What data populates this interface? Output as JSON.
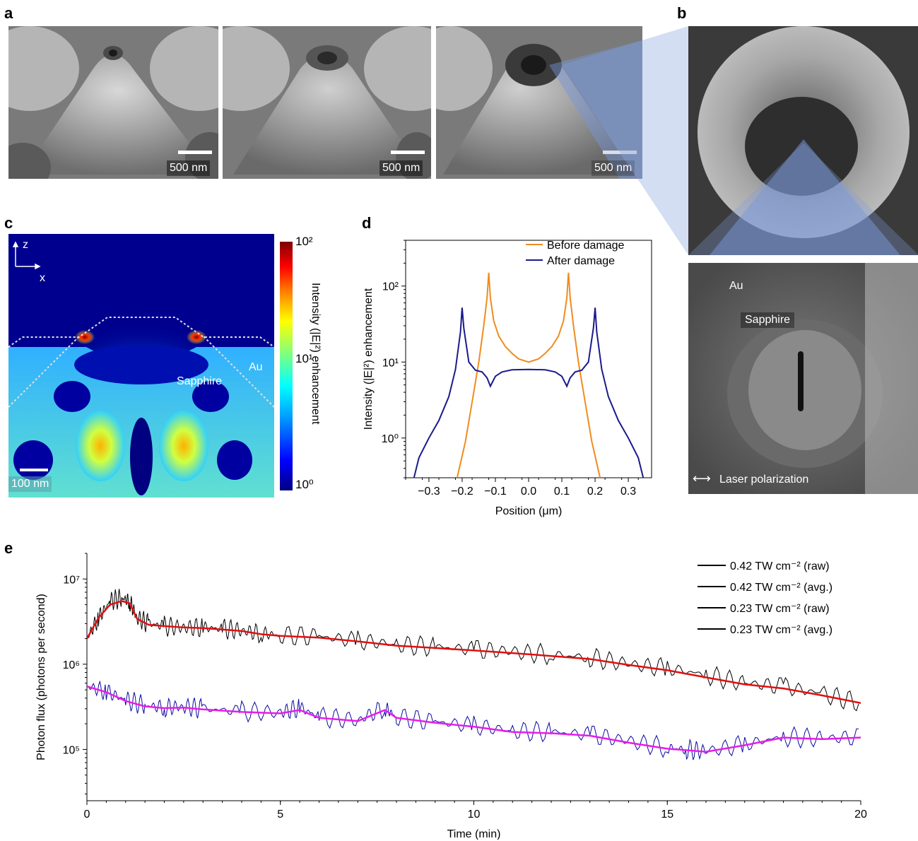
{
  "panel_labels": {
    "a": "a",
    "b": "b",
    "c": "c",
    "d": "d",
    "e": "e"
  },
  "panel_a": {
    "images": [
      {
        "scale_bar": "500 nm"
      },
      {
        "scale_bar": "500 nm"
      },
      {
        "scale_bar": "500 nm"
      }
    ]
  },
  "panel_b": {
    "labels": {
      "au": "Au",
      "sapphire": "Sapphire",
      "polarization": "Laser polarization",
      "polarization_arrow": "⟷"
    }
  },
  "panel_c": {
    "axis_z": "z",
    "axis_x": "x",
    "label_au": "Au",
    "label_sapphire": "Sapphire",
    "scale_bar": "100 nm",
    "colorbar": {
      "label": "Intensity (|E|²) enhancement",
      "ticks": [
        "10²",
        "10¹",
        "10⁰"
      ],
      "colors": [
        "#00007f",
        "#0000ff",
        "#00a0ff",
        "#00ffff",
        "#7fff7f",
        "#ffff00",
        "#ff7f00",
        "#ff0000",
        "#7f0000"
      ]
    }
  },
  "chart_data": [
    {
      "id": "panel-d",
      "type": "line",
      "xlabel": "Position (μm)",
      "ylabel": "Intensity (|E|²) enhancement",
      "xlim": [
        -0.37,
        0.37
      ],
      "ylim": [
        0.3,
        400
      ],
      "yscale": "log",
      "xticks": [
        "−0.3",
        "−0.2",
        "−0.1",
        "0.0",
        "0.1",
        "0.2",
        "0.3"
      ],
      "xtick_values": [
        -0.3,
        -0.2,
        -0.1,
        0.0,
        0.1,
        0.2,
        0.3
      ],
      "yticks": [
        "10⁰",
        "10¹",
        "10²"
      ],
      "ytick_values": [
        1,
        10,
        100
      ],
      "legend_position": "top-right",
      "series": [
        {
          "name": "Before damage",
          "color": "#f08c1e",
          "x": [
            -0.215,
            -0.19,
            -0.17,
            -0.15,
            -0.135,
            -0.125,
            -0.12,
            -0.115,
            -0.105,
            -0.09,
            -0.07,
            -0.05,
            -0.03,
            0.0,
            0.03,
            0.05,
            0.07,
            0.09,
            0.105,
            0.115,
            0.12,
            0.125,
            0.135,
            0.15,
            0.17,
            0.19,
            0.215
          ],
          "y": [
            0.3,
            0.9,
            3,
            10,
            30,
            70,
            150,
            70,
            35,
            22,
            16,
            13,
            11,
            10,
            11,
            13,
            16,
            22,
            35,
            70,
            150,
            70,
            30,
            10,
            3,
            0.9,
            0.3
          ]
        },
        {
          "name": "After damage",
          "color": "#1a1a8c",
          "x": [
            -0.345,
            -0.33,
            -0.3,
            -0.27,
            -0.24,
            -0.22,
            -0.205,
            -0.2,
            -0.195,
            -0.18,
            -0.16,
            -0.14,
            -0.125,
            -0.115,
            -0.1,
            -0.08,
            -0.05,
            0.0,
            0.05,
            0.08,
            0.1,
            0.115,
            0.125,
            0.14,
            0.16,
            0.18,
            0.195,
            0.2,
            0.205,
            0.22,
            0.24,
            0.27,
            0.3,
            0.33,
            0.345
          ],
          "y": [
            0.3,
            0.55,
            1.0,
            1.7,
            3.5,
            8,
            25,
            52,
            28,
            10,
            7.8,
            7.4,
            6.2,
            4.8,
            6.5,
            7.4,
            7.9,
            8.0,
            7.9,
            7.4,
            6.5,
            4.8,
            6.2,
            7.4,
            7.8,
            10,
            28,
            52,
            25,
            8,
            3.5,
            1.7,
            1.0,
            0.55,
            0.3
          ]
        }
      ]
    },
    {
      "id": "panel-e",
      "type": "line",
      "xlabel": "Time (min)",
      "ylabel": "Photon flux (photons per second)",
      "xlim": [
        0,
        20
      ],
      "ylim": [
        25000,
        20000000
      ],
      "yscale": "log",
      "xticks": [
        "0",
        "5",
        "10",
        "15",
        "20"
      ],
      "xtick_values": [
        0,
        5,
        10,
        15,
        20
      ],
      "yticks": [
        "10⁵",
        "10⁶",
        "10⁷"
      ],
      "ytick_values": [
        100000,
        1000000,
        10000000
      ],
      "legend_position": "top-right",
      "series": [
        {
          "name": "0.42 TW cm⁻² (raw)",
          "color": "#000000",
          "x": [
            0,
            0.3,
            0.6,
            0.9,
            1.1,
            1.3,
            1.6,
            2,
            2.5,
            3,
            3.5,
            4,
            4.5,
            5,
            6,
            7,
            8,
            9,
            10,
            11,
            12,
            13,
            14,
            15,
            16,
            17,
            18,
            19,
            20
          ],
          "y": [
            2000000,
            3500000,
            5500000,
            6000000,
            5500000,
            3500000,
            3000000,
            2800000,
            2700000,
            2700000,
            2600000,
            2500000,
            2300000,
            2200000,
            2100000,
            1900000,
            1700000,
            1600000,
            1500000,
            1400000,
            1300000,
            1200000,
            1000000,
            900000,
            750000,
            600000,
            550000,
            450000,
            350000
          ]
        },
        {
          "name": "0.42 TW cm⁻² (avg.)",
          "color": "#e01010",
          "x": [
            0,
            0.3,
            0.6,
            0.9,
            1.1,
            1.3,
            1.6,
            2,
            2.5,
            3,
            3.5,
            4,
            4.5,
            5,
            6,
            7,
            8,
            9,
            10,
            11,
            12,
            13,
            14,
            15,
            16,
            17,
            18,
            19,
            20
          ],
          "y": [
            2000000,
            3500000,
            5000000,
            5500000,
            5200000,
            3400000,
            2900000,
            2800000,
            2700000,
            2650000,
            2550000,
            2450000,
            2250000,
            2150000,
            2050000,
            1850000,
            1650000,
            1550000,
            1450000,
            1350000,
            1250000,
            1150000,
            980000,
            850000,
            700000,
            580000,
            520000,
            430000,
            350000
          ]
        },
        {
          "name": "0.23 TW cm⁻² (raw)",
          "color": "#0a0aa0",
          "x": [
            0,
            0.5,
            1,
            1.5,
            2,
            2.5,
            3,
            4,
            5,
            5.5,
            6,
            7,
            7.7,
            8,
            9,
            10,
            11,
            12,
            13,
            14,
            15,
            15.5,
            16,
            17,
            18,
            19,
            20
          ],
          "y": [
            550000,
            480000,
            380000,
            330000,
            310000,
            320000,
            300000,
            280000,
            270000,
            310000,
            240000,
            220000,
            310000,
            240000,
            210000,
            190000,
            165000,
            160000,
            150000,
            125000,
            105000,
            100000,
            95000,
            115000,
            140000,
            135000,
            140000
          ]
        },
        {
          "name": "0.23 TW cm⁻² (avg.)",
          "color": "#e81ce8",
          "x": [
            0,
            0.5,
            1,
            1.5,
            2,
            2.5,
            3,
            4,
            5,
            5.5,
            6,
            7,
            7.7,
            8,
            9,
            10,
            11,
            12,
            13,
            14,
            15,
            15.5,
            16,
            17,
            18,
            19,
            20
          ],
          "y": [
            550000,
            470000,
            370000,
            320000,
            305000,
            310000,
            295000,
            275000,
            265000,
            290000,
            235000,
            215000,
            290000,
            235000,
            205000,
            185000,
            160000,
            155000,
            145000,
            120000,
            102000,
            98000,
            94000,
            112000,
            138000,
            132000,
            138000
          ]
        }
      ]
    }
  ]
}
